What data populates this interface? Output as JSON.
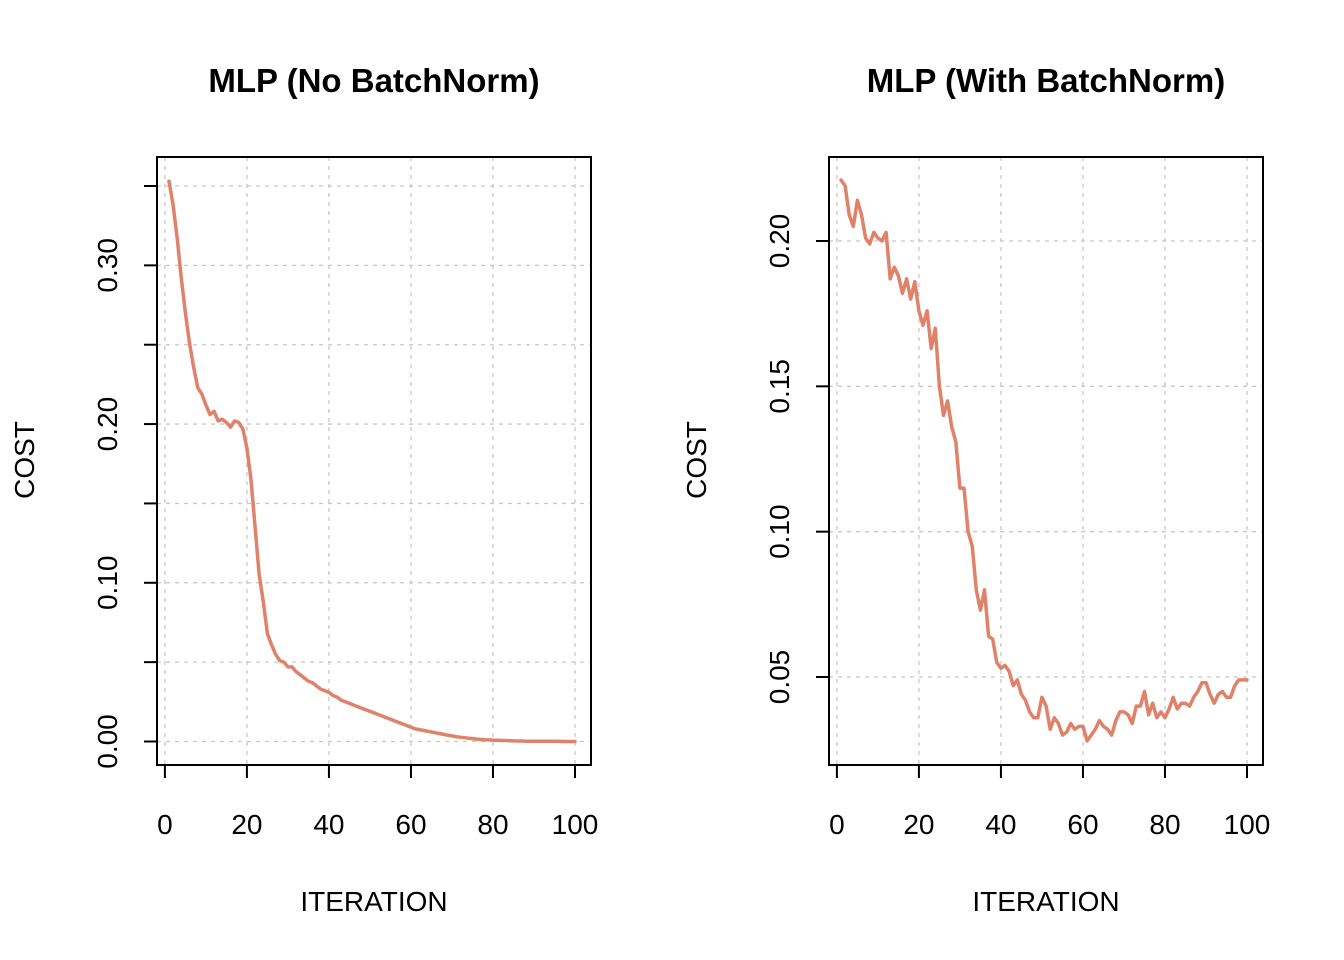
{
  "colors": {
    "line": "#E0826A",
    "grid": "#C8C8C8",
    "axis": "#000000"
  },
  "chart_data": [
    {
      "type": "line",
      "title": "MLP (No BatchNorm)",
      "xlabel": "ITERATION",
      "ylabel": "COST",
      "xlim": [
        1,
        100
      ],
      "ylim": [
        0,
        0.35
      ],
      "xticks": [
        0,
        20,
        40,
        60,
        80,
        100
      ],
      "xtick_labels": [
        "0",
        "20",
        "40",
        "60",
        "80",
        "100"
      ],
      "yticks": [
        0,
        0.05,
        0.1,
        0.15,
        0.2,
        0.25,
        0.3,
        0.35
      ],
      "ytick_labels": [
        "0.00",
        "",
        "0.10",
        "",
        "0.20",
        "",
        "0.30",
        ""
      ],
      "grid": true,
      "series": [
        {
          "x": [
            1,
            2,
            3,
            4,
            5,
            6,
            7,
            8,
            9,
            10,
            11,
            12,
            13,
            14,
            15,
            16,
            17,
            18,
            19,
            20,
            21,
            22,
            23,
            24,
            25,
            26,
            27,
            28,
            29,
            30,
            31,
            32,
            33,
            34,
            35,
            36,
            37,
            38,
            39,
            40,
            41,
            42,
            43,
            44,
            45,
            46,
            47,
            48,
            49,
            50,
            51,
            52,
            53,
            54,
            55,
            56,
            57,
            58,
            59,
            60,
            61,
            62,
            63,
            64,
            65,
            66,
            67,
            68,
            69,
            70,
            71,
            72,
            73,
            74,
            75,
            76,
            77,
            78,
            79,
            80,
            81,
            82,
            83,
            84,
            85,
            86,
            87,
            88,
            89,
            90,
            91,
            92,
            93,
            94,
            95,
            96,
            97,
            98,
            99,
            100
          ],
          "values": [
            0.353,
            0.338,
            0.317,
            0.292,
            0.27,
            0.251,
            0.236,
            0.223,
            0.219,
            0.212,
            0.206,
            0.208,
            0.202,
            0.203,
            0.201,
            0.198,
            0.202,
            0.201,
            0.197,
            0.185,
            0.165,
            0.135,
            0.105,
            0.088,
            0.068,
            0.061,
            0.055,
            0.051,
            0.05,
            0.047,
            0.047,
            0.044,
            0.042,
            0.04,
            0.038,
            0.037,
            0.035,
            0.033,
            0.032,
            0.031,
            0.029,
            0.028,
            0.026,
            0.025,
            0.024,
            0.023,
            0.022,
            0.021,
            0.02,
            0.019,
            0.018,
            0.017,
            0.016,
            0.015,
            0.014,
            0.013,
            0.012,
            0.011,
            0.01,
            0.009,
            0.008,
            0.0075,
            0.007,
            0.0065,
            0.006,
            0.0055,
            0.005,
            0.0045,
            0.004,
            0.0035,
            0.003,
            0.0027,
            0.0024,
            0.0021,
            0.0018,
            0.0015,
            0.0013,
            0.0011,
            0.001,
            0.0009,
            0.0008,
            0.0007,
            0.0006,
            0.0005,
            0.0004,
            0.0003,
            0.0003,
            0.0002,
            0.0002,
            0.0002,
            0.0001,
            0.0001,
            0.0001,
            0.0001,
            0.0001,
            0.0001,
            0.0,
            0.0,
            0.0,
            0.0
          ]
        }
      ]
    },
    {
      "type": "line",
      "title": "MLP (With BatchNorm)",
      "xlabel": "ITERATION",
      "ylabel": "COST",
      "xlim": [
        1,
        100
      ],
      "ylim": [
        0.025,
        0.225
      ],
      "xticks": [
        0,
        20,
        40,
        60,
        80,
        100
      ],
      "xtick_labels": [
        "0",
        "20",
        "40",
        "60",
        "80",
        "100"
      ],
      "yticks": [
        0.05,
        0.1,
        0.15,
        0.2
      ],
      "ytick_labels": [
        "0.05",
        "0.10",
        "0.15",
        "0.20"
      ],
      "grid": true,
      "series": [
        {
          "x": [
            1,
            2,
            3,
            4,
            5,
            6,
            7,
            8,
            9,
            10,
            11,
            12,
            13,
            14,
            15,
            16,
            17,
            18,
            19,
            20,
            21,
            22,
            23,
            24,
            25,
            26,
            27,
            28,
            29,
            30,
            31,
            32,
            33,
            34,
            35,
            36,
            37,
            38,
            39,
            40,
            41,
            42,
            43,
            44,
            45,
            46,
            47,
            48,
            49,
            50,
            51,
            52,
            53,
            54,
            55,
            56,
            57,
            58,
            59,
            60,
            61,
            62,
            63,
            64,
            65,
            66,
            67,
            68,
            69,
            70,
            71,
            72,
            73,
            74,
            75,
            76,
            77,
            78,
            79,
            80,
            81,
            82,
            83,
            84,
            85,
            86,
            87,
            88,
            89,
            90,
            91,
            92,
            93,
            94,
            95,
            96,
            97,
            98,
            99,
            100
          ],
          "values": [
            0.221,
            0.219,
            0.209,
            0.205,
            0.214,
            0.209,
            0.201,
            0.199,
            0.203,
            0.201,
            0.2,
            0.203,
            0.187,
            0.191,
            0.188,
            0.182,
            0.187,
            0.18,
            0.186,
            0.176,
            0.171,
            0.176,
            0.163,
            0.17,
            0.15,
            0.14,
            0.145,
            0.136,
            0.131,
            0.115,
            0.115,
            0.1,
            0.095,
            0.08,
            0.073,
            0.08,
            0.064,
            0.063,
            0.055,
            0.053,
            0.054,
            0.052,
            0.047,
            0.049,
            0.044,
            0.042,
            0.038,
            0.036,
            0.036,
            0.043,
            0.04,
            0.032,
            0.036,
            0.034,
            0.03,
            0.031,
            0.034,
            0.032,
            0.033,
            0.033,
            0.028,
            0.03,
            0.032,
            0.035,
            0.033,
            0.032,
            0.03,
            0.035,
            0.038,
            0.038,
            0.037,
            0.034,
            0.04,
            0.04,
            0.045,
            0.037,
            0.041,
            0.036,
            0.038,
            0.036,
            0.039,
            0.043,
            0.039,
            0.041,
            0.041,
            0.04,
            0.043,
            0.045,
            0.048,
            0.048,
            0.044,
            0.041,
            0.044,
            0.045,
            0.043,
            0.043,
            0.047,
            0.049,
            0.049,
            0.049
          ]
        }
      ]
    }
  ]
}
